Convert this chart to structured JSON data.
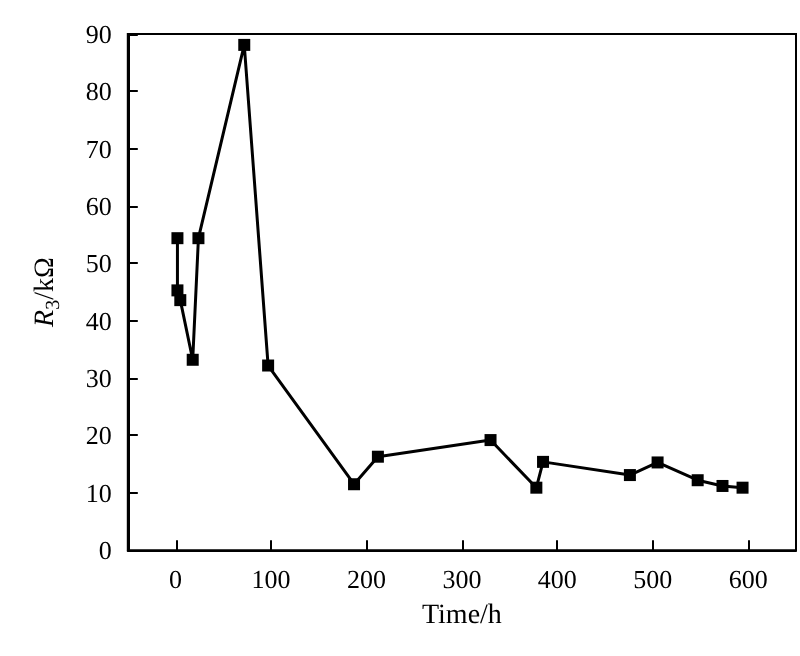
{
  "chart_data": {
    "type": "line",
    "xlabel": "Time/h",
    "ylabel": "R$_{3}$/kΩ",
    "x": [
      2,
      2,
      5,
      18,
      24,
      72,
      97,
      187,
      212,
      330,
      378,
      385,
      476,
      505,
      547,
      573,
      594
    ],
    "series": [
      {
        "color": "#000000",
        "values": [
          54.4,
          45.3,
          43.6,
          33.2,
          54.4,
          88.1,
          32.2,
          11.5,
          16.3,
          19.2,
          10.9,
          15.4,
          13.1,
          15.3,
          12.2,
          11.2,
          10.9
        ]
      }
    ],
    "xlim": [
      -50,
      650
    ],
    "xticks": [
      0,
      100,
      200,
      300,
      400,
      500,
      600
    ],
    "ylim": [
      0,
      90
    ],
    "yticks": [
      0,
      10,
      20,
      30,
      40,
      50,
      60,
      70,
      80,
      90
    ],
    "grid": false,
    "marker": "square",
    "line_style": "solid"
  }
}
